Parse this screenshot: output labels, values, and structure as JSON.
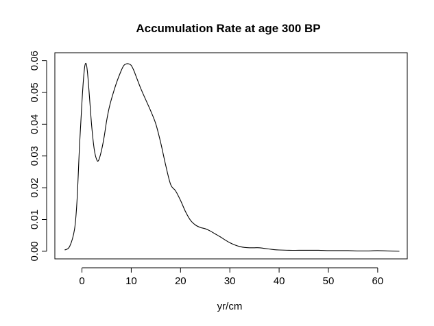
{
  "chart_data": {
    "type": "line",
    "title": "Accumulation Rate at age 300 BP",
    "xlabel": "yr/cm",
    "ylabel": "",
    "xlim": [
      -5.5,
      66
    ],
    "ylim": [
      -0.0024,
      0.0625
    ],
    "xticks": [
      0,
      10,
      20,
      30,
      40,
      50,
      60
    ],
    "xtick_labels": [
      "0",
      "10",
      "20",
      "30",
      "40",
      "50",
      "60"
    ],
    "yticks": [
      0,
      0.01,
      0.02,
      0.03,
      0.04,
      0.05,
      0.06
    ],
    "ytick_labels": [
      "0.00",
      "0.01",
      "0.02",
      "0.03",
      "0.04",
      "0.05",
      "0.06"
    ],
    "grid": false,
    "series": [
      {
        "x": [
          -3.5,
          -2.5,
          -1.5,
          -1.0,
          -0.5,
          0.0,
          0.3,
          0.6,
          0.9,
          1.2,
          1.6,
          2.0,
          2.5,
          3.0,
          3.4,
          4.0,
          4.5,
          5.0,
          5.5,
          6.0,
          7.0,
          8.0,
          8.5,
          9.0,
          9.5,
          10.0,
          10.5,
          11.0,
          12.0,
          13.0,
          14.0,
          15.0,
          16.0,
          17.0,
          18.0,
          19.0,
          20.0,
          21.0,
          22.0,
          23.0,
          24.0,
          25.0,
          26.0,
          27.0,
          28.0,
          29.0,
          30.0,
          31.0,
          32.0,
          33.0,
          34.0,
          35.0,
          36.0,
          37.0,
          38.0,
          39.0,
          40.0,
          42.0,
          44.0,
          46.0,
          48.0,
          50.0,
          52.0,
          54.0,
          56.0,
          58.0,
          60.0,
          62.0,
          64.4
        ],
        "y": [
          0.0004,
          0.0015,
          0.007,
          0.016,
          0.033,
          0.047,
          0.054,
          0.0585,
          0.0588,
          0.055,
          0.047,
          0.039,
          0.032,
          0.0288,
          0.0287,
          0.032,
          0.036,
          0.041,
          0.045,
          0.048,
          0.053,
          0.057,
          0.0585,
          0.059,
          0.059,
          0.0585,
          0.057,
          0.055,
          0.051,
          0.0475,
          0.044,
          0.04,
          0.034,
          0.027,
          0.021,
          0.019,
          0.016,
          0.0125,
          0.0098,
          0.0083,
          0.0075,
          0.0071,
          0.0064,
          0.0055,
          0.0046,
          0.0036,
          0.0027,
          0.002,
          0.0015,
          0.0012,
          0.0011,
          0.0011,
          0.0011,
          0.0009,
          0.0007,
          0.0005,
          0.0004,
          0.0003,
          0.0003,
          0.0003,
          0.0003,
          0.0002,
          0.0002,
          0.0002,
          0.0001,
          0.0001,
          0.0002,
          0.0001,
          0.0
        ]
      }
    ]
  }
}
